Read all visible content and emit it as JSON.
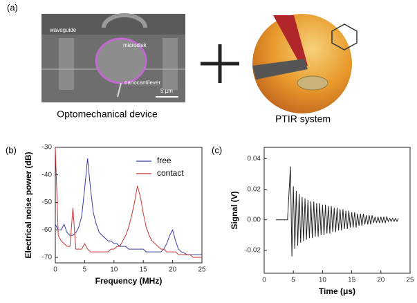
{
  "panel_a": {
    "label": "(a)",
    "sem_labels": [
      "waveguide",
      "microdisk",
      "nanocantilever"
    ],
    "scale_bar": "5 µm",
    "left_caption": "Optomechanical device",
    "right_caption": "PTIR system"
  },
  "chart_data": [
    {
      "type": "line",
      "panel_label": "(b)",
      "xlabel": "Frequency (MHz)",
      "ylabel": "Electrical noise power (dB)",
      "x": [
        0,
        0.5,
        1,
        1.5,
        2,
        2.5,
        3,
        3.5,
        4,
        4.5,
        5,
        5.5,
        6,
        6.5,
        7,
        7.5,
        8,
        8.5,
        9,
        9.5,
        10,
        10.5,
        11,
        11.5,
        12,
        12.5,
        13,
        13.5,
        14,
        14.5,
        15,
        15.5,
        16,
        16.5,
        17,
        17.5,
        18,
        18.5,
        19,
        19.5,
        20,
        20.5,
        21,
        21.5,
        22,
        22.5,
        23,
        23.5,
        24,
        24.5,
        25
      ],
      "series": [
        {
          "name": "free",
          "color": "#3b3ba6",
          "values": [
            -58,
            -60,
            -60,
            -58,
            -61,
            -62,
            -62,
            -61,
            -59,
            -55,
            -45,
            -34,
            -45,
            -54,
            -58,
            -61,
            -62,
            -63,
            -64,
            -64,
            -65,
            -65,
            -66,
            -66,
            -66,
            -67,
            -67,
            -67,
            -67,
            -67,
            -67,
            -68,
            -68,
            -68,
            -68,
            -68,
            -68,
            -67,
            -65,
            -62,
            -60,
            -64,
            -67,
            -68,
            -68.5,
            -69,
            -69,
            -69,
            -69,
            -69,
            -69
          ]
        },
        {
          "name": "contact",
          "color": "#c83434",
          "values": [
            -30,
            -62,
            -64,
            -65,
            -66,
            -66,
            -52,
            -67,
            -67,
            -67,
            -65,
            -67,
            -68,
            -68,
            -68,
            -68,
            -68,
            -68,
            -68,
            -67,
            -67,
            -66,
            -66,
            -64,
            -62,
            -59,
            -55,
            -50,
            -44,
            -48,
            -54,
            -59,
            -62,
            -64,
            -65,
            -66,
            -67,
            -67,
            -68,
            -68,
            -68,
            -68,
            -69,
            -69,
            -69,
            -69,
            -69,
            -70,
            -70,
            -70,
            -70
          ]
        }
      ],
      "xlim": [
        0,
        25
      ],
      "ylim": [
        -72,
        -30
      ],
      "xticks": [
        0,
        5,
        10,
        15,
        20,
        25
      ],
      "yticks": [
        -70,
        -60,
        -50,
        -40,
        -30
      ],
      "legend": "upper right"
    },
    {
      "type": "line",
      "panel_label": "(c)",
      "xlabel": "Time (μs)",
      "ylabel": "Signal (V)",
      "x": [
        2,
        3,
        4,
        4.5,
        4.75,
        5,
        5.25,
        5.5,
        5.75,
        6,
        6.25,
        6.5,
        6.75,
        7,
        7.25,
        7.5,
        7.75,
        8,
        8.25,
        8.5,
        8.75,
        9,
        9.25,
        9.5,
        9.75,
        10,
        10.25,
        10.5,
        10.75,
        11,
        11.25,
        11.5,
        11.75,
        12,
        12.25,
        12.5,
        12.75,
        13,
        13.25,
        13.5,
        13.75,
        14,
        14.25,
        14.5,
        14.75,
        15,
        15.25,
        15.5,
        15.75,
        16,
        16.25,
        16.5,
        16.75,
        17,
        17.25,
        17.5,
        17.75,
        18,
        18.25,
        18.5,
        18.75,
        19,
        19.25,
        19.5,
        19.75,
        20,
        20.25,
        20.5,
        20.75,
        21,
        21.25,
        21.5,
        21.75,
        22,
        22.25,
        22.5,
        22.75,
        23
      ],
      "values": [
        0,
        0,
        0,
        0.035,
        -0.024,
        0.022,
        -0.019,
        0.019,
        -0.017,
        0.017,
        -0.015,
        0.015,
        -0.014,
        0.014,
        -0.013,
        0.013,
        -0.012,
        0.012,
        -0.012,
        0.012,
        -0.011,
        0.011,
        -0.011,
        0.011,
        -0.01,
        0.01,
        -0.01,
        0.01,
        -0.009,
        0.009,
        -0.009,
        0.009,
        -0.008,
        0.008,
        -0.008,
        0.008,
        -0.007,
        0.007,
        -0.007,
        0.007,
        -0.006,
        0.006,
        -0.006,
        0.006,
        -0.005,
        0.005,
        -0.005,
        0.005,
        -0.005,
        0.004,
        -0.004,
        0.004,
        -0.004,
        0.004,
        -0.003,
        0.003,
        -0.003,
        0.003,
        -0.003,
        0.003,
        -0.002,
        0.002,
        -0.002,
        0.002,
        -0.002,
        0.002,
        -0.002,
        0.002,
        -0.002,
        0.002,
        -0.001,
        0.001,
        -0.001,
        0.001,
        -0.001,
        0.001,
        -0.001,
        0.001
      ],
      "color": "#222222",
      "xlim": [
        0,
        25
      ],
      "ylim": [
        -0.035,
        0.0475
      ],
      "xticks": [
        0,
        5,
        10,
        15,
        20,
        25
      ],
      "yticks": [
        {
          "value": -0.02,
          "label": "-0.02"
        },
        {
          "value": 0,
          "label": "0.00"
        },
        {
          "value": 0.02,
          "label": "0.02"
        },
        {
          "value": 0.04,
          "label": "0.04"
        }
      ]
    }
  ]
}
